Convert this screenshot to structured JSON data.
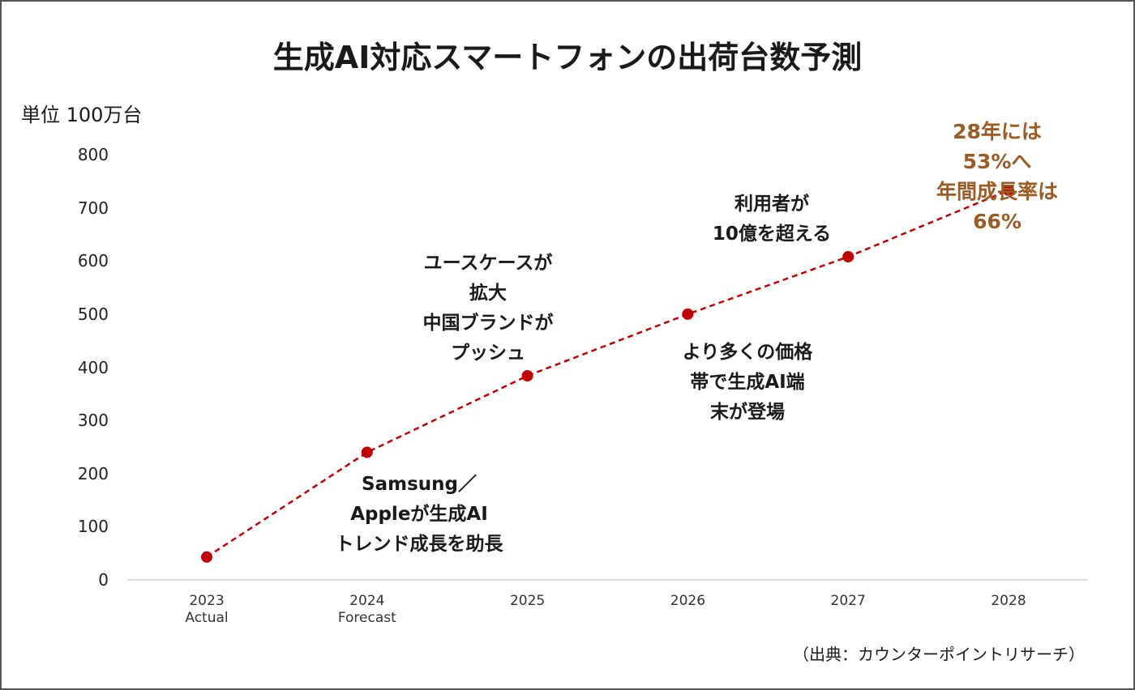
{
  "chart_data": {
    "type": "line",
    "title": "生成AI対応スマートフォンの出荷台数予測",
    "y_label": "単位 100万台",
    "source": "（出典：カウンターポイントリサーチ）",
    "categories": [
      "2023\nActual",
      "2024\nForecast",
      "2025",
      "2026",
      "2027",
      "2028"
    ],
    "series": [
      {
        "color": "#c00000",
        "values": [
          43,
          240,
          384,
          500,
          608,
          733
        ]
      }
    ],
    "ylim": [
      0,
      800
    ],
    "yticks": [
      0,
      100,
      200,
      300,
      400,
      500,
      600,
      700,
      800
    ],
    "annotations": [
      {
        "text": "Samsung／\nAppleが生成AI\nトレンド成長を助長",
        "color": "#1a1a1a"
      },
      {
        "text": "ユースケースが\n拡大\n中国ブランドが\nプッシュ",
        "color": "#1a1a1a"
      },
      {
        "text": "利用者が\n10億を超える",
        "color": "#1a1a1a"
      },
      {
        "text": "より多くの価格\n帯で生成AI端\n末が登場",
        "color": "#1a1a1a"
      },
      {
        "text": "28年には53%へ\n年間成長率は66%",
        "color": "#9c5a24"
      }
    ]
  }
}
